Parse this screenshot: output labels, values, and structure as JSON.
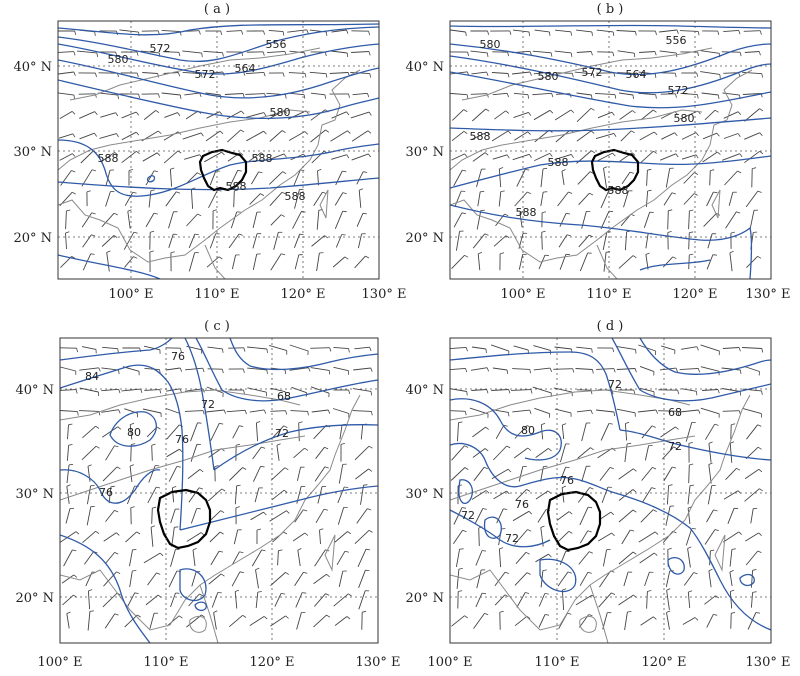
{
  "figure": {
    "panels": [
      {
        "id": "a",
        "label": "( a )",
        "lon_labels": [
          "100° E",
          "110° E",
          "120° E",
          "130° E"
        ],
        "lat_labels": [
          "40° N",
          "30° N",
          "20° N"
        ],
        "contour_labels": [
          "556",
          "572",
          "572",
          "564",
          "580",
          "580",
          "588",
          "588",
          "588",
          "588"
        ]
      },
      {
        "id": "b",
        "label": "( b )",
        "lon_labels": [
          "100° E",
          "110° E",
          "120° E",
          "130° E"
        ],
        "lat_labels": [
          "40° N",
          "30° N",
          "20° N"
        ],
        "contour_labels": [
          "556",
          "580",
          "572",
          "564",
          "580",
          "572",
          "580",
          "588",
          "588",
          "588",
          "588"
        ]
      },
      {
        "id": "c",
        "label": "( c )",
        "lon_labels": [
          "100° E",
          "110° E",
          "120° E",
          "130° E"
        ],
        "lat_labels": [
          "40° N",
          "30° N",
          "20° N"
        ],
        "contour_labels": [
          "84",
          "76",
          "72",
          "68",
          "80",
          "76",
          "72",
          "76"
        ]
      },
      {
        "id": "d",
        "label": "( d )",
        "lon_labels": [
          "100° E",
          "110° E",
          "120° E",
          "130° E"
        ],
        "lat_labels": [
          "40° N",
          "30° N",
          "20° N"
        ],
        "contour_labels": [
          "72",
          "68",
          "80",
          "72",
          "76",
          "76",
          "72",
          "72"
        ]
      }
    ],
    "colors": {
      "contour": "#2f5aa8",
      "coast": "#8a8a8a",
      "wind": "#444444",
      "region": "#000000",
      "grid": "#555555"
    }
  }
}
